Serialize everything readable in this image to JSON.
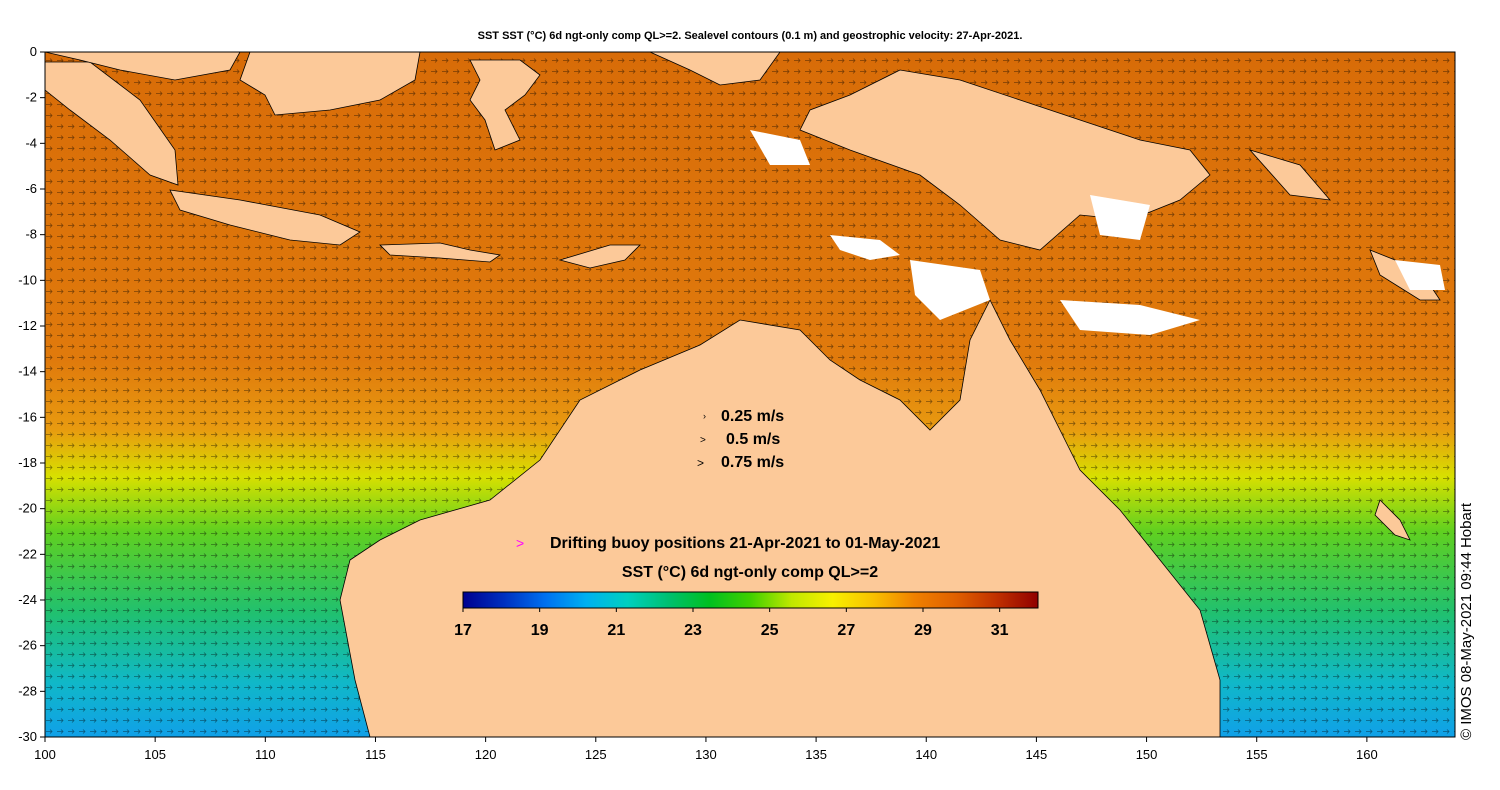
{
  "title": "SST SST (°C) 6d ngt-only comp QL>=2. Sealevel contours (0.1 m) and geostrophic velocity: 27-Apr-2021.",
  "axes": {
    "x_ticks": [
      "100",
      "105",
      "110",
      "115",
      "120",
      "125",
      "130",
      "135",
      "140",
      "145",
      "150",
      "155",
      "160"
    ],
    "y_ticks": [
      "0",
      "-2",
      "-4",
      "-6",
      "-8",
      "-10",
      "-12",
      "-14",
      "-16",
      "-18",
      "-20",
      "-22",
      "-24",
      "-26",
      "-28",
      "-30"
    ],
    "lon_range": [
      100,
      164
    ],
    "lat_range": [
      -30,
      0
    ]
  },
  "velocity_legend": [
    {
      "label": "0.25 m/s"
    },
    {
      "label": "0.5 m/s"
    },
    {
      "label": "0.75 m/s"
    }
  ],
  "buoy_legend": {
    "symbol": ">",
    "label": "Drifting buoy positions 21-Apr-2021 to 01-May-2021",
    "color": "#ff00ff"
  },
  "colorbar": {
    "title": "SST (°C) 6d ngt-only comp QL>=2",
    "min": 17,
    "max": 32,
    "tick_labels": [
      "17",
      "19",
      "21",
      "23",
      "25",
      "27",
      "29",
      "31"
    ],
    "colors": [
      "#00008f",
      "#0030c0",
      "#0070f0",
      "#00b0f0",
      "#00d0c0",
      "#00c070",
      "#00c020",
      "#40d000",
      "#c0e800",
      "#f8f000",
      "#f8c000",
      "#f08000",
      "#e06000",
      "#c03000",
      "#900000"
    ]
  },
  "credit": "© IMOS 08-May-2021 09:44 Hobart",
  "colors": {
    "land": "#fcc999",
    "cloud": "#ffffff",
    "coast": "#000000"
  }
}
